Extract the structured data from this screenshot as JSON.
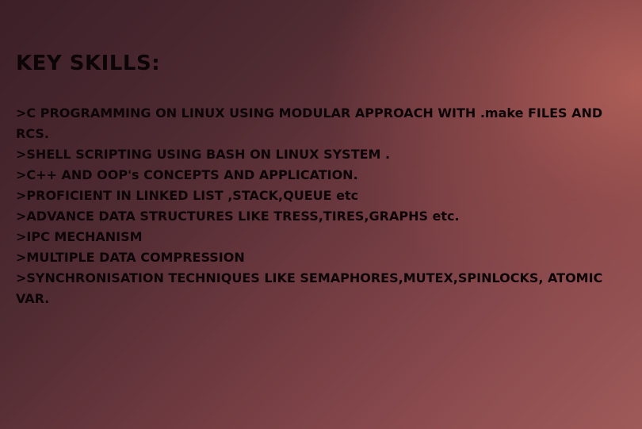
{
  "slide": {
    "heading": "KEY SKILLS:",
    "skills": [
      ">C PROGRAMMING ON LINUX USING MODULAR APPROACH WITH .make FILES AND RCS.",
      ">SHELL SCRIPTING USING BASH ON LINUX SYSTEM .",
      ">C++ AND OOP's CONCEPTS AND APPLICATION.",
      ">PROFICIENT IN LINKED LIST ,STACK,QUEUE etc",
      ">ADVANCE DATA STRUCTURES LIKE TRESS,TIRES,GRAPHS etc.",
      ">IPC MECHANISM",
      ">MULTIPLE DATA COMPRESSION",
      ">SYNCHRONISATION TECHNIQUES LIKE SEMAPHORES,MUTEX,SPINLOCKS, ATOMIC VAR."
    ]
  },
  "colors": {
    "text": "#0b0507",
    "background_dark": "#3c1f28",
    "background_light": "#b06058"
  }
}
